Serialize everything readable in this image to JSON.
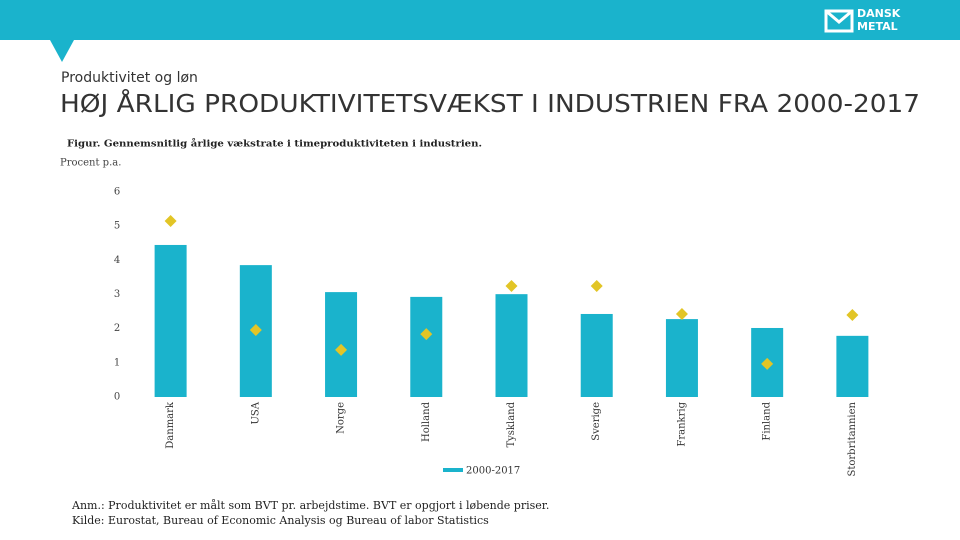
{
  "header": {
    "logo": [
      "DANSK",
      "METAL"
    ],
    "subtitle": "Produktivitet og løn",
    "title": "HØJ ÅRLIG PRODUKTIVITETSVÆKST I INDUSTRIEN FRA 2000-2017"
  },
  "chart_data": {
    "type": "bar",
    "title": "Figur. Gennemsnitlig årlige vækstrate i timeproduktiviteten i industrien.",
    "y_label": "Procent p.a.",
    "categories": [
      "Danmark",
      "USA",
      "Norge",
      "Holland",
      "Tyskland",
      "Sverige",
      "Frankrig",
      "Finland",
      "Storbritannien"
    ],
    "series": [
      {
        "name": "2000-2017",
        "color": "#1ab3cc",
        "values": [
          4.45,
          3.86,
          3.07,
          2.93,
          3.01,
          2.43,
          2.28,
          2.02,
          1.79
        ]
      },
      {
        "marker": "diamond",
        "color": "#e2c526",
        "values": [
          5.15,
          1.96,
          1.38,
          1.84,
          3.25,
          3.25,
          2.43,
          0.97,
          2.4
        ]
      }
    ],
    "ylim": [
      0,
      6
    ],
    "yticks": [
      0,
      1,
      2,
      3,
      4,
      5,
      6
    ],
    "grid": false
  },
  "notes": [
    "Anm.: Produktivitet er målt som BVT pr. arbejdstime. BVT er opgjort i løbende priser.",
    "Kilde: Eurostat, Bureau of Economic Analysis og Bureau of labor Statistics"
  ]
}
